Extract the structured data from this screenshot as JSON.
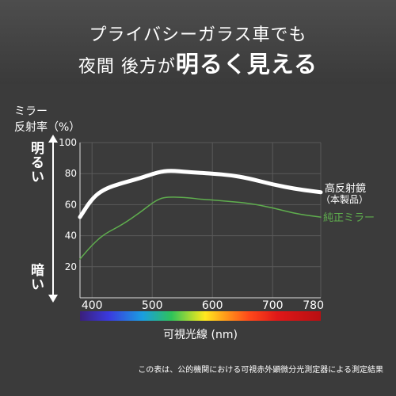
{
  "header": {
    "line1": "プライバシーガラス車でも",
    "line2_prefix": "夜間 後方が",
    "line2_highlight": "明るく見える"
  },
  "y_axis": {
    "label_line1": "ミラー",
    "label_line2": "反射率（%）",
    "top_label": "明るい",
    "bottom_label": "暗い"
  },
  "spectrum_label": "可視光線 (nm)",
  "footnote": "この表は、公的機関における可視赤外顕微分光測定器による測定結果",
  "colors": {
    "background": "#3b3b3b",
    "high_reflection": "#ffffff",
    "standard_mirror": "#5fae4e",
    "grid": "#5a5a5a"
  },
  "chart_data": {
    "type": "line",
    "ylabel": "ミラー 反射率（%）",
    "xlabel": "可視光線 (nm)",
    "xlim": [
      380,
      780
    ],
    "ylim": [
      0,
      100
    ],
    "y_ticks": [
      20,
      40,
      60,
      80,
      100
    ],
    "x_ticks": [
      400,
      500,
      600,
      700,
      780
    ],
    "grid": true,
    "series": [
      {
        "name": "高反射鏡",
        "name_line2": "（本製品）",
        "color": "#ffffff",
        "points": [
          [
            380,
            52
          ],
          [
            400,
            64
          ],
          [
            420,
            70
          ],
          [
            450,
            74
          ],
          [
            480,
            77
          ],
          [
            510,
            81
          ],
          [
            530,
            82
          ],
          [
            560,
            81
          ],
          [
            580,
            80.5
          ],
          [
            600,
            80
          ],
          [
            630,
            79
          ],
          [
            660,
            77
          ],
          [
            700,
            73
          ],
          [
            740,
            70
          ],
          [
            780,
            68
          ]
        ]
      },
      {
        "name": "純正ミラー",
        "color": "#5fae4e",
        "points": [
          [
            380,
            25
          ],
          [
            400,
            34
          ],
          [
            420,
            41
          ],
          [
            450,
            47
          ],
          [
            480,
            55
          ],
          [
            510,
            64
          ],
          [
            530,
            65
          ],
          [
            560,
            64.5
          ],
          [
            580,
            63.5
          ],
          [
            600,
            63
          ],
          [
            630,
            62
          ],
          [
            660,
            61
          ],
          [
            700,
            58
          ],
          [
            740,
            54
          ],
          [
            780,
            52
          ]
        ]
      }
    ]
  }
}
